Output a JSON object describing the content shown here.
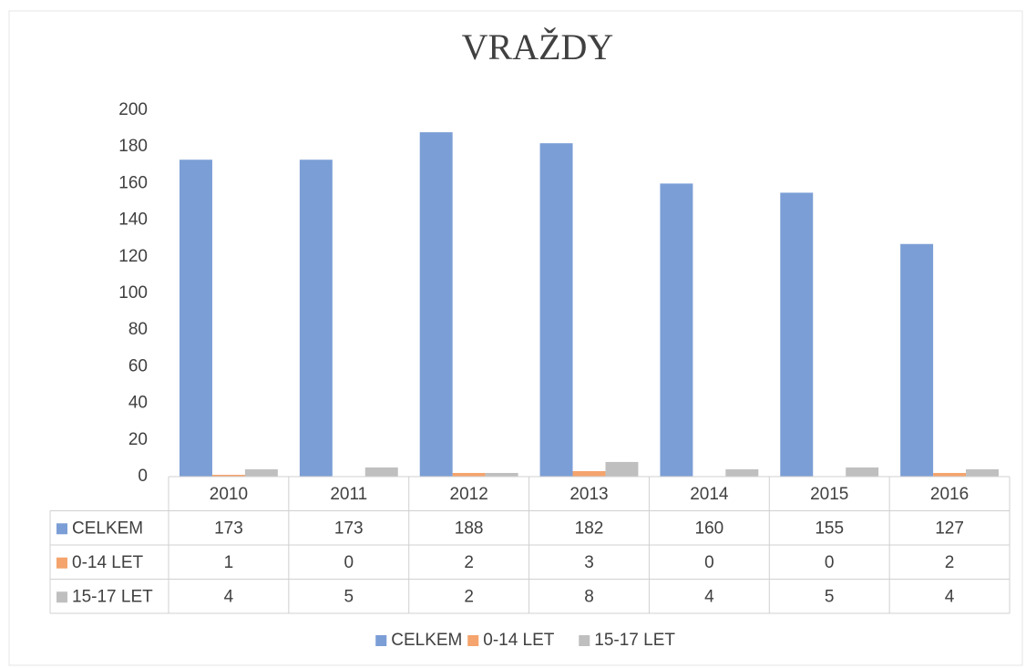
{
  "chart_data": {
    "type": "bar",
    "title": "VRAŽDY",
    "categories": [
      "2010",
      "2011",
      "2012",
      "2013",
      "2014",
      "2015",
      "2016"
    ],
    "series": [
      {
        "name": "CELKEM",
        "color": "#7b9ed6",
        "values": [
          173,
          173,
          188,
          182,
          160,
          155,
          127
        ]
      },
      {
        "name": "0-14 LET",
        "color": "#f4a46c",
        "values": [
          1,
          0,
          2,
          3,
          0,
          0,
          2
        ]
      },
      {
        "name": "15-17 LET",
        "color": "#bfbfbf",
        "values": [
          4,
          5,
          2,
          8,
          4,
          5,
          4
        ]
      }
    ],
    "ylim": [
      0,
      200
    ],
    "yticks": [
      0,
      20,
      40,
      60,
      80,
      100,
      120,
      140,
      160,
      180,
      200
    ],
    "grid": false,
    "legend": "bottom",
    "data_table": true
  }
}
